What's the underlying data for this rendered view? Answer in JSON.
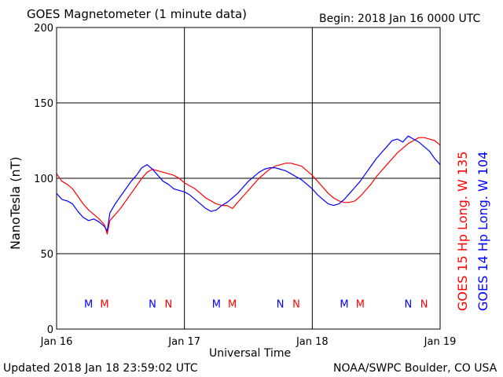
{
  "header": {
    "title": "GOES Magnetometer (1 minute data)",
    "begin": "Begin:  2018 Jan 16 0000 UTC"
  },
  "footer": {
    "updated": "Updated 2018 Jan 18 23:59:02 UTC",
    "credit": "NOAA/SWPC Boulder, CO USA"
  },
  "colors": {
    "goes15": "#ff0000",
    "goes14": "#0000ff",
    "grid": "#000000"
  },
  "chart_data": {
    "type": "line",
    "xlabel": "Universal Time",
    "ylabel": "NanoTesla (nT)",
    "x_unit": "hours since 2018 Jan 16 0000 UTC",
    "xlim": [
      0,
      72
    ],
    "ylim": [
      0,
      200
    ],
    "yticks": [
      0,
      50,
      100,
      150,
      200
    ],
    "xticks": [
      {
        "x": 0,
        "label": "Jan 16"
      },
      {
        "x": 24,
        "label": "Jan 17"
      },
      {
        "x": 48,
        "label": "Jan 18"
      },
      {
        "x": 72,
        "label": "Jan 19"
      }
    ],
    "grid": true,
    "series": [
      {
        "name": "GOES 15 Hp  Long. W 135",
        "color": "#ff0000",
        "x": [
          0,
          1,
          2,
          3,
          4,
          5,
          6,
          7,
          8,
          9,
          9.5,
          10,
          11,
          12,
          13,
          14,
          15,
          16,
          17,
          18,
          19,
          20,
          21,
          22,
          23,
          24,
          25,
          26,
          27,
          28,
          29,
          30,
          31,
          32,
          33,
          34,
          35,
          36,
          37,
          38,
          39,
          40,
          41,
          42,
          43,
          44,
          45,
          46,
          47,
          48,
          49,
          50,
          51,
          52,
          53,
          54,
          55,
          56,
          57,
          58,
          59,
          60,
          61,
          62,
          63,
          64,
          65,
          66,
          67,
          68,
          69,
          70,
          71,
          72
        ],
        "values": [
          103,
          98,
          96,
          93,
          88,
          83,
          79,
          76,
          73,
          69,
          63,
          72,
          76,
          80,
          85,
          90,
          95,
          100,
          104,
          106,
          105,
          104,
          103,
          102,
          100,
          97,
          95,
          93,
          90,
          87,
          85,
          83,
          82,
          82,
          80,
          84,
          88,
          92,
          96,
          100,
          103,
          106,
          108,
          109,
          110,
          110,
          109,
          108,
          105,
          102,
          98,
          94,
          90,
          87,
          85,
          84,
          84,
          85,
          88,
          92,
          96,
          101,
          105,
          109,
          113,
          117,
          120,
          123,
          125,
          127,
          127,
          126,
          125,
          122
        ]
      },
      {
        "name": "GOES 14 Hp  Long. W 104",
        "color": "#0000ff",
        "x": [
          0,
          1,
          2,
          3,
          4,
          5,
          6,
          7,
          8,
          9,
          9.5,
          10,
          11,
          12,
          13,
          14,
          15,
          16,
          17,
          18,
          19,
          20,
          21,
          22,
          23,
          24,
          25,
          26,
          27,
          28,
          29,
          30,
          31,
          32,
          33,
          34,
          35,
          36,
          37,
          38,
          39,
          40,
          41,
          42,
          43,
          44,
          45,
          46,
          47,
          48,
          49,
          50,
          51,
          52,
          53,
          54,
          55,
          56,
          57,
          58,
          59,
          60,
          61,
          62,
          63,
          64,
          65,
          66,
          67,
          68,
          69,
          70,
          71,
          72
        ],
        "values": [
          90,
          86,
          85,
          83,
          78,
          74,
          72,
          73,
          71,
          68,
          65,
          77,
          83,
          88,
          93,
          98,
          102,
          107,
          109,
          106,
          102,
          98,
          96,
          93,
          92,
          91,
          89,
          86,
          83,
          80,
          78,
          79,
          82,
          84,
          87,
          90,
          94,
          98,
          101,
          104,
          106,
          107,
          107,
          106,
          105,
          103,
          101,
          99,
          96,
          93,
          89,
          86,
          83,
          82,
          83,
          86,
          90,
          94,
          98,
          103,
          108,
          113,
          117,
          121,
          125,
          126,
          124,
          128,
          126,
          124,
          121,
          118,
          113,
          109
        ]
      }
    ],
    "annotations": [
      {
        "text": "M",
        "x": 6,
        "color": "#0000ff"
      },
      {
        "text": "M",
        "x": 9,
        "color": "#ff0000"
      },
      {
        "text": "N",
        "x": 18,
        "color": "#0000ff"
      },
      {
        "text": "N",
        "x": 21,
        "color": "#ff0000"
      },
      {
        "text": "M",
        "x": 30,
        "color": "#0000ff"
      },
      {
        "text": "M",
        "x": 33,
        "color": "#ff0000"
      },
      {
        "text": "N",
        "x": 42,
        "color": "#0000ff"
      },
      {
        "text": "N",
        "x": 45,
        "color": "#ff0000"
      },
      {
        "text": "M",
        "x": 54,
        "color": "#0000ff"
      },
      {
        "text": "M",
        "x": 57,
        "color": "#ff0000"
      },
      {
        "text": "N",
        "x": 66,
        "color": "#0000ff"
      },
      {
        "text": "N",
        "x": 69,
        "color": "#ff0000"
      }
    ],
    "annotation_y": 17
  }
}
